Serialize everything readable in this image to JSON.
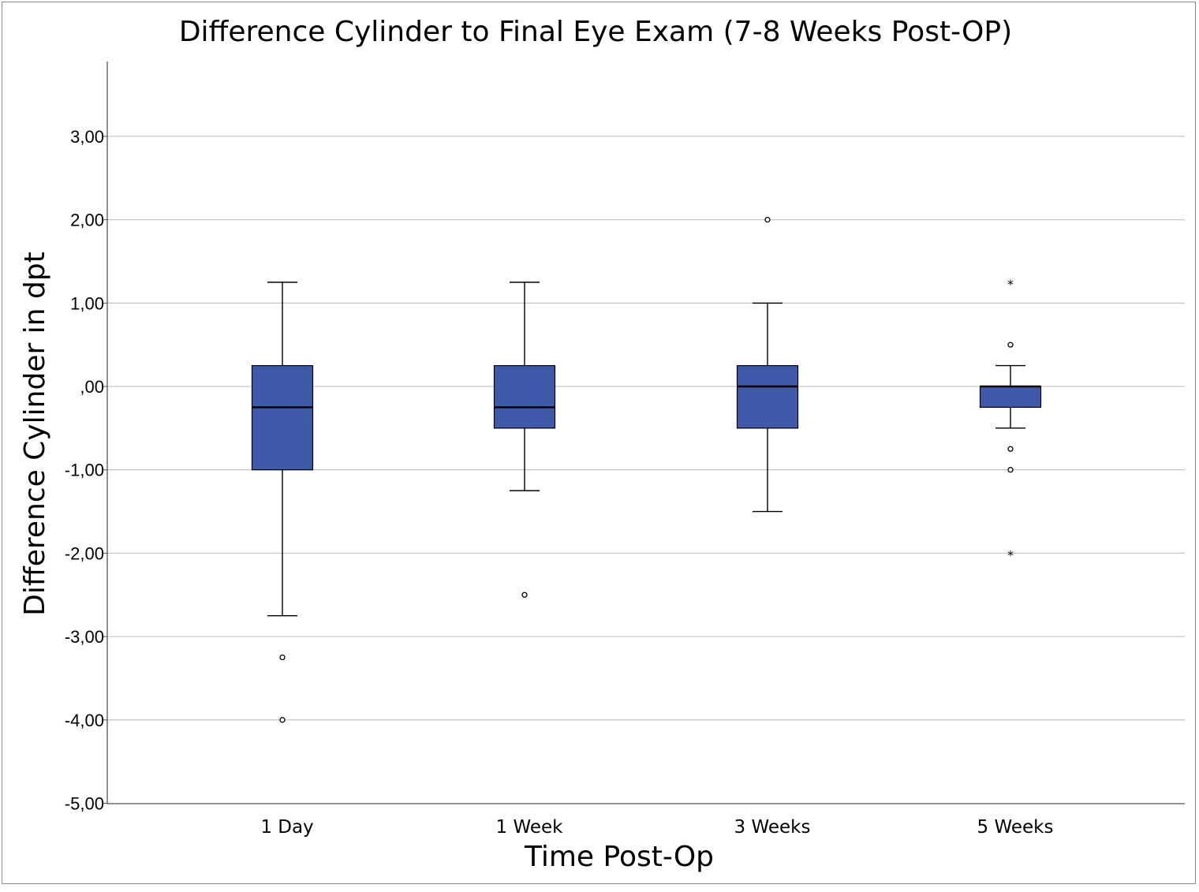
{
  "chart_data": {
    "type": "boxplot",
    "title": "Difference Cylinder to Final Eye Exam (7-8 Weeks Post-OP)",
    "xlabel": "Time Post-Op",
    "ylabel": "Difference Cylinder in dpt",
    "ylim": [
      -5,
      4
    ],
    "yticks": [
      3,
      2,
      1,
      0,
      -1,
      -2,
      -3,
      -4,
      -5
    ],
    "ytick_labels": [
      "3,00",
      "2,00",
      "1,00",
      ",00",
      "-1,00",
      "-2,00",
      "-3,00",
      "-4,00",
      "-5,00"
    ],
    "grid": true,
    "box_color": "#3f5aa8",
    "categories": [
      "1 Day",
      "1 Week",
      "3 Weeks",
      "5 Weeks"
    ],
    "boxes": [
      {
        "category": "1 Day",
        "whisker_low": -2.75,
        "q1": -1.0,
        "median": -0.25,
        "q3": 0.25,
        "whisker_high": 1.25,
        "outliers": [
          -3.25,
          -4.0
        ],
        "extremes": []
      },
      {
        "category": "1 Week",
        "whisker_low": -1.25,
        "q1": -0.5,
        "median": -0.25,
        "q3": 0.25,
        "whisker_high": 1.25,
        "outliers": [
          -2.5
        ],
        "extremes": []
      },
      {
        "category": "3 Weeks",
        "whisker_low": -1.5,
        "q1": -0.5,
        "median": 0.0,
        "q3": 0.25,
        "whisker_high": 1.0,
        "outliers": [
          2.0
        ],
        "extremes": []
      },
      {
        "category": "5 Weeks",
        "whisker_low": -0.5,
        "q1": -0.25,
        "median": 0.0,
        "q3": 0.0,
        "whisker_high": 0.25,
        "outliers": [
          0.5,
          -0.75,
          -1.0
        ],
        "extremes": [
          1.25,
          -2.0
        ]
      }
    ]
  }
}
